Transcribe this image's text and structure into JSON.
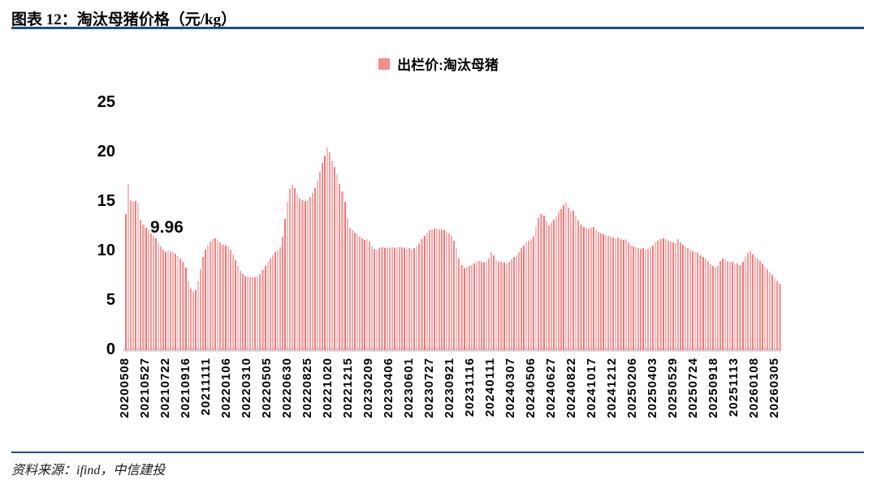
{
  "figure": {
    "title": "图表 12：淘汰母猪价格（元/kg）",
    "source": "资料来源：ifind，中信建投"
  },
  "colors": {
    "rule": "#1F4E79",
    "bar": "#EE6B6B",
    "legend_swatch": "#F48C8C",
    "baseline": "#DCDCDC",
    "text": "#000000"
  },
  "chart_data": {
    "type": "bar",
    "title": "淘汰母猪价格（元/kg）",
    "legend": [
      {
        "label": "出栏价:淘汰母猪",
        "color": "#F48C8C"
      }
    ],
    "legend_position": "top-center",
    "xlabel": "",
    "ylabel": "",
    "ylim": [
      0,
      25
    ],
    "yticks": [
      0,
      5,
      10,
      15,
      20,
      25
    ],
    "grid": false,
    "annotation": {
      "text": "9.96",
      "value": 9.96,
      "near_x_label": "20210722"
    },
    "x_tick_labels": [
      "20200508",
      "20210527",
      "20210722",
      "20210916",
      "20211111",
      "20220106",
      "20220310",
      "20220505",
      "20220630",
      "20220825",
      "20221020",
      "20221215",
      "20230209",
      "20230406",
      "20230601",
      "20230727",
      "20230921",
      "20231116",
      "20240111",
      "20240307",
      "20240506",
      "20240627",
      "20240822",
      "20241017",
      "20241212",
      "20250206",
      "20250403",
      "20250529",
      "20250724",
      "20250918",
      "20251113",
      "20260108",
      "20260305"
    ],
    "values": [
      13.8,
      16.8,
      15.2,
      15.0,
      15.1,
      14.9,
      13.2,
      12.7,
      12.4,
      12.1,
      11.8,
      11.55,
      11.3,
      10.9,
      10.5,
      10.15,
      9.96,
      10.05,
      10.0,
      9.9,
      9.75,
      9.55,
      9.3,
      8.9,
      8.4,
      7.0,
      6.2,
      5.9,
      6.1,
      7.0,
      8.2,
      9.4,
      10.2,
      10.7,
      11.0,
      11.2,
      11.3,
      11.15,
      10.9,
      10.7,
      10.55,
      10.5,
      10.2,
      9.7,
      9.1,
      8.5,
      8.0,
      7.7,
      7.5,
      7.45,
      7.4,
      7.35,
      7.4,
      7.5,
      7.7,
      8.1,
      8.5,
      8.9,
      9.3,
      9.6,
      9.9,
      10.1,
      10.4,
      11.5,
      13.3,
      15.0,
      16.3,
      16.7,
      16.4,
      15.8,
      15.3,
      15.15,
      15.1,
      15.2,
      15.5,
      15.9,
      16.4,
      17.1,
      18.0,
      18.9,
      19.7,
      20.5,
      20.0,
      19.2,
      18.5,
      17.8,
      16.8,
      16.1,
      15.0,
      13.4,
      12.4,
      12.1,
      11.9,
      11.7,
      11.5,
      11.3,
      11.15,
      11.25,
      11.0,
      10.5,
      10.25,
      10.15,
      10.3,
      10.4,
      10.3,
      10.4,
      10.35,
      10.4,
      10.3,
      10.4,
      10.45,
      10.4,
      10.3,
      10.25,
      10.3,
      10.2,
      10.35,
      10.5,
      10.8,
      11.2,
      11.6,
      11.9,
      12.1,
      12.25,
      12.3,
      12.3,
      12.25,
      12.2,
      12.1,
      12.0,
      11.8,
      11.6,
      11.1,
      10.3,
      9.3,
      8.6,
      8.3,
      8.35,
      8.5,
      8.6,
      8.8,
      8.95,
      9.0,
      8.9,
      8.85,
      8.9,
      9.3,
      9.9,
      9.6,
      9.1,
      8.95,
      8.9,
      8.85,
      8.8,
      8.9,
      9.2,
      9.4,
      9.6,
      9.9,
      10.3,
      10.6,
      10.9,
      11.1,
      11.25,
      11.5,
      12.5,
      13.4,
      13.8,
      13.6,
      13.0,
      12.65,
      12.85,
      13.2,
      13.5,
      13.9,
      14.3,
      14.7,
      14.9,
      14.4,
      14.05,
      14.1,
      13.6,
      13.1,
      12.7,
      12.5,
      12.4,
      12.3,
      12.35,
      12.45,
      12.1,
      11.95,
      11.8,
      11.7,
      11.65,
      11.55,
      11.45,
      11.4,
      11.35,
      11.4,
      11.25,
      11.15,
      11.2,
      10.9,
      10.6,
      10.5,
      10.45,
      10.3,
      10.25,
      10.3,
      10.2,
      10.25,
      10.4,
      10.6,
      10.9,
      11.1,
      11.2,
      11.3,
      11.25,
      11.1,
      11.0,
      10.9,
      10.8,
      11.25,
      10.9,
      10.7,
      10.5,
      10.3,
      10.15,
      10.0,
      9.9,
      9.8,
      9.6,
      9.45,
      9.3,
      9.0,
      8.7,
      8.5,
      8.4,
      8.5,
      9.0,
      9.3,
      9.2,
      9.05,
      8.95,
      8.9,
      8.8,
      8.75,
      8.65,
      8.9,
      9.4,
      9.8,
      10.0,
      9.7,
      9.45,
      9.3,
      9.0,
      8.7,
      8.45,
      8.2,
      7.9,
      7.6,
      7.3,
      7.0,
      6.7
    ]
  }
}
